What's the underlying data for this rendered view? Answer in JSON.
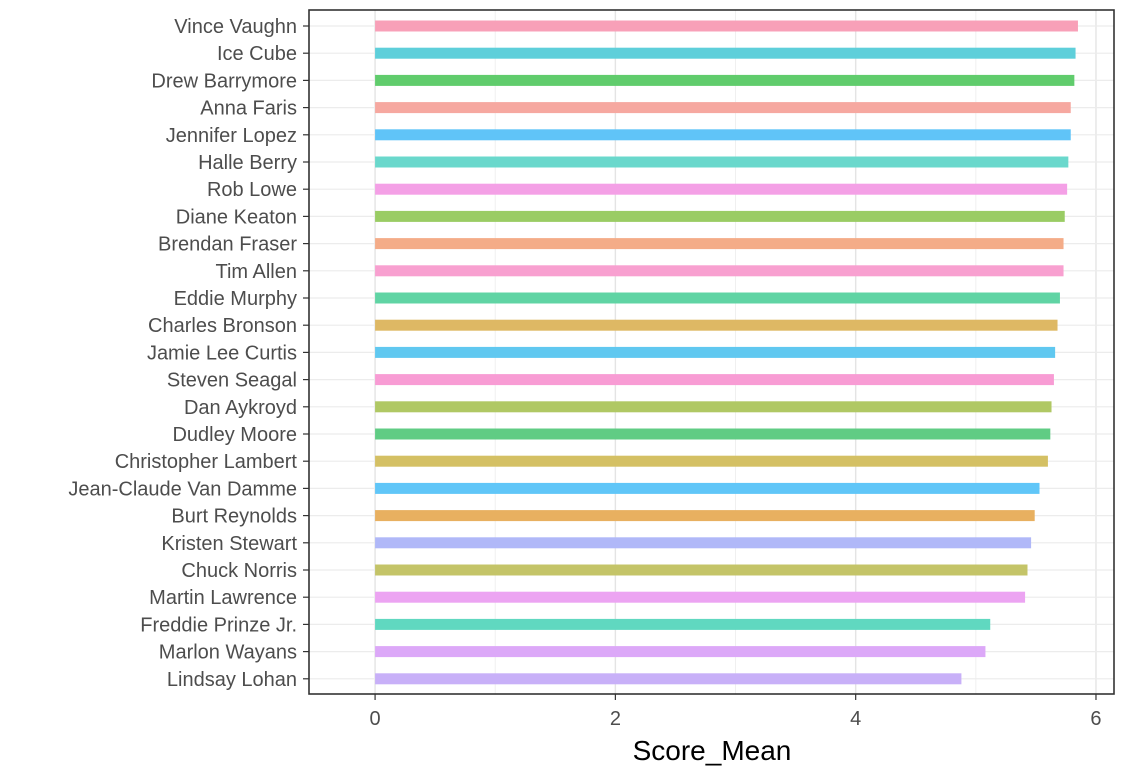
{
  "chart_data": {
    "type": "bar",
    "orientation": "horizontal",
    "xlabel": "Score_Mean",
    "ylabel": "",
    "xlim": [
      -0.55,
      6.15
    ],
    "xticks": [
      0,
      2,
      4,
      6
    ],
    "grid": true,
    "legend": "none",
    "categories": [
      "Vince Vaughn",
      "Ice Cube",
      "Drew Barrymore",
      "Anna Faris",
      "Jennifer Lopez",
      "Halle Berry",
      "Rob Lowe",
      "Diane Keaton",
      "Brendan Fraser",
      "Tim Allen",
      "Eddie Murphy",
      "Charles Bronson",
      "Jamie Lee Curtis",
      "Steven Seagal",
      "Dan Aykroyd",
      "Dudley Moore",
      "Christopher Lambert",
      "Jean-Claude Van Damme",
      "Burt Reynolds",
      "Kristen Stewart",
      "Chuck Norris",
      "Martin Lawrence",
      "Freddie Prinze Jr.",
      "Marlon Wayans",
      "Lindsay Lohan"
    ],
    "values": [
      5.85,
      5.83,
      5.82,
      5.79,
      5.79,
      5.77,
      5.76,
      5.74,
      5.73,
      5.73,
      5.7,
      5.68,
      5.66,
      5.65,
      5.63,
      5.62,
      5.6,
      5.53,
      5.49,
      5.46,
      5.43,
      5.41,
      5.12,
      5.08,
      4.88
    ],
    "colors": [
      "#F8A0B8",
      "#5ECFDA",
      "#60CC6C",
      "#F6A8A0",
      "#60C4F8",
      "#6AD8CC",
      "#F4A0E6",
      "#9ACC64",
      "#F4AC88",
      "#F8A0D0",
      "#60D4A4",
      "#DEB864",
      "#60C8F0",
      "#F89CD4",
      "#B0C864",
      "#60CC84",
      "#D4C064",
      "#60C6F8",
      "#E8B060",
      "#B0B8F8",
      "#C4C468",
      "#ECA4F2",
      "#60D8C0",
      "#DCA8F8",
      "#C8B0F8"
    ]
  }
}
